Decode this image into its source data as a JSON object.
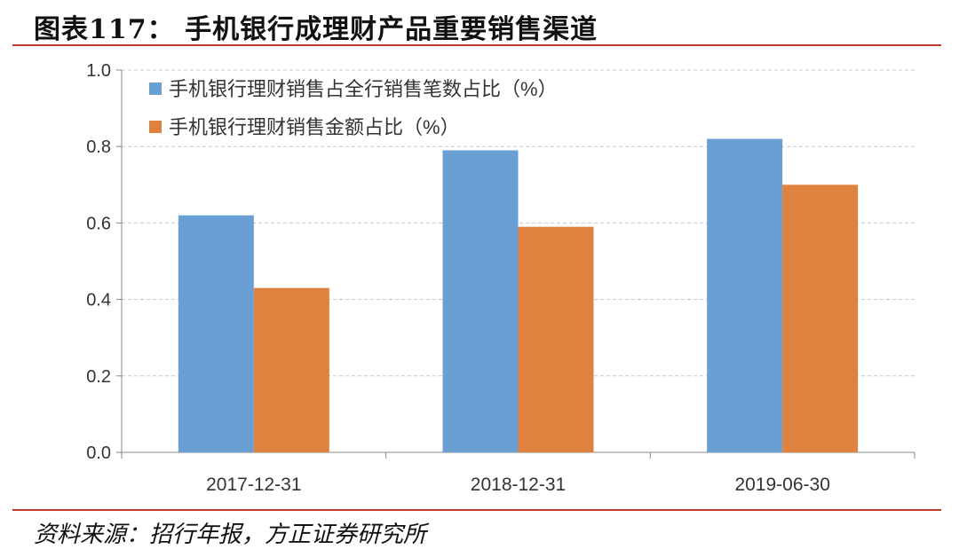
{
  "header": {
    "title": "图表117：  手机银行成理财产品重要销售渠道"
  },
  "footer": {
    "source": "资料来源：招行年报，方正证券研究所"
  },
  "colors": {
    "accent_rule": "#c0392b",
    "series1": "#6a9fd4",
    "series2": "#e0823f"
  },
  "chart_data": {
    "type": "bar",
    "categories": [
      "2017-12-31",
      "2018-12-31",
      "2019-06-30"
    ],
    "series": [
      {
        "name": "手机银行理财销售占全行销售笔数占比（%）",
        "values": [
          0.62,
          0.79,
          0.82
        ]
      },
      {
        "name": "手机银行理财销售金额占比（%）",
        "values": [
          0.43,
          0.59,
          0.7
        ]
      }
    ],
    "ylim": [
      0,
      1.0
    ],
    "yticks": [
      "0.0",
      "0.2",
      "0.4",
      "0.6",
      "0.8",
      "1.0"
    ],
    "grid": true,
    "legend": "top-left"
  }
}
